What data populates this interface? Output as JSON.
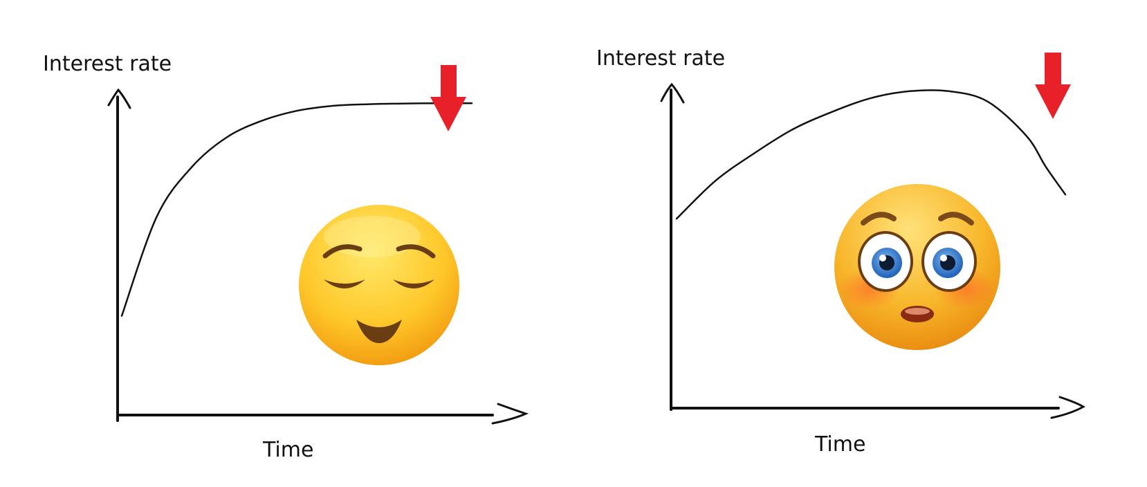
{
  "chart_data": [
    {
      "type": "line",
      "title": "",
      "xlabel": "Time",
      "ylabel": "Interest rate",
      "x": [
        0,
        10,
        20,
        30,
        40,
        50,
        60,
        70,
        80,
        90,
        100
      ],
      "series": [
        {
          "values": [
            30,
            60,
            75,
            84,
            89,
            92,
            93.5,
            94,
            94.2,
            94.3,
            94.3
          ]
        }
      ],
      "ylim": [
        0,
        100
      ],
      "xlim": [
        0,
        100
      ],
      "grid": false,
      "annotations": [
        {
          "type": "arrow-down",
          "color": "#e8202a"
        },
        {
          "type": "emoji",
          "name": "relieved-face-emoji"
        }
      ]
    },
    {
      "type": "line",
      "title": "",
      "xlabel": "Time",
      "ylabel": "Interest rate",
      "x": [
        0,
        10,
        20,
        30,
        40,
        50,
        60,
        70,
        80,
        90,
        95,
        100
      ],
      "series": [
        {
          "values": [
            55,
            66,
            74,
            81,
            86,
            90,
            92,
            92,
            89,
            79,
            70,
            62
          ]
        }
      ],
      "ylim": [
        0,
        100
      ],
      "xlim": [
        0,
        100
      ],
      "grid": false,
      "annotations": [
        {
          "type": "arrow-down",
          "color": "#e8202a"
        },
        {
          "type": "emoji",
          "name": "flushed-face-emoji"
        }
      ]
    }
  ]
}
